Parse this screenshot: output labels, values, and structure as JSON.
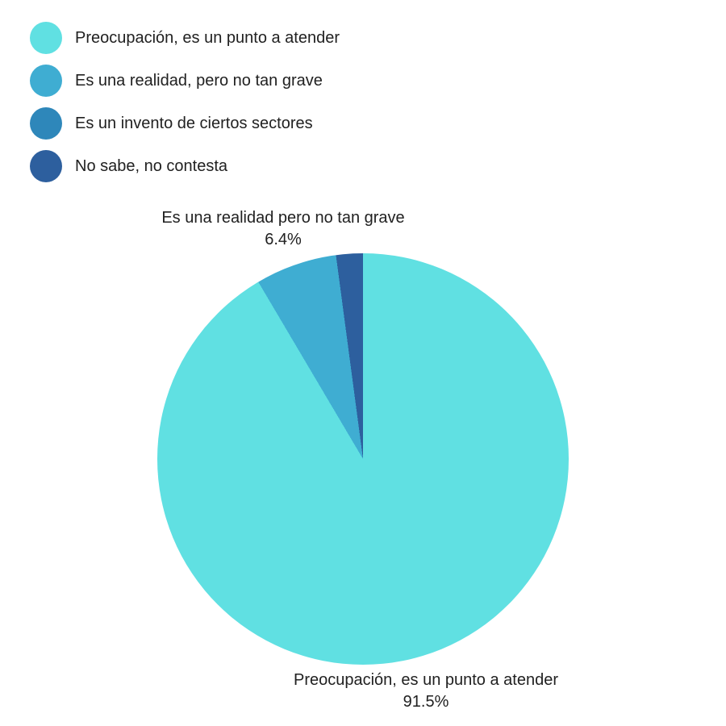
{
  "background": "#ffffff",
  "text_color": "#212121",
  "chart_data": {
    "type": "pie",
    "title": "",
    "categories": [
      "Preocupación, es un punto a atender",
      "Es una realidad, pero no tan grave",
      "Es un invento de ciertos sectores",
      "No sabe, no contesta"
    ],
    "values": [
      91.5,
      6.4,
      0,
      2.1
    ],
    "colors": [
      "#60e0e2",
      "#3fadd2",
      "#2e87ba",
      "#2d5f9e"
    ],
    "start_angle_deg": 0,
    "direction": "clockwise",
    "legend_position": "top-left",
    "slice_labels": {
      "top": {
        "line1": "Es una realidad pero no tan grave",
        "line2": "6.4%"
      },
      "bottom": {
        "line1": "Preocupación, es un punto a atender",
        "line2": "91.5%"
      }
    }
  }
}
